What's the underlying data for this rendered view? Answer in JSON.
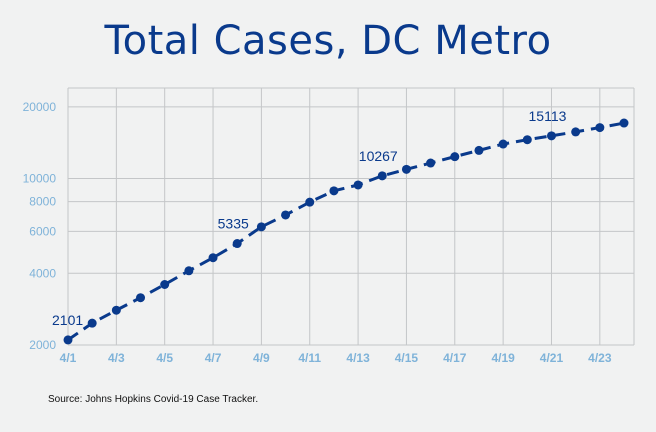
{
  "chart_data": {
    "type": "line",
    "title": "Total Cases, DC Metro",
    "xlabel": "",
    "ylabel": "",
    "yscale": "log",
    "ylim": [
      2000,
      24000
    ],
    "grid": true,
    "x": [
      "4/1",
      "4/2",
      "4/3",
      "4/4",
      "4/5",
      "4/6",
      "4/7",
      "4/8",
      "4/9",
      "4/10",
      "4/11",
      "4/12",
      "4/13",
      "4/14",
      "4/15",
      "4/16",
      "4/17",
      "4/18",
      "4/19",
      "4/20",
      "4/21",
      "4/22",
      "4/23",
      "4/24"
    ],
    "x_tick_labels": [
      "4/1",
      "4/3",
      "4/5",
      "4/7",
      "4/9",
      "4/11",
      "4/13",
      "4/15",
      "4/17",
      "4/19",
      "4/21",
      "4/23"
    ],
    "y_tick_labels": [
      2000,
      4000,
      6000,
      8000,
      10000,
      20000
    ],
    "series": [
      {
        "color": "#0a3a8c",
        "line_style": "dashed",
        "values": [
          2101,
          2470,
          2800,
          3160,
          3590,
          4100,
          4650,
          5335,
          6270,
          7030,
          7960,
          8880,
          9400,
          10267,
          10930,
          11620,
          12360,
          13130,
          13960,
          14560,
          15113,
          15700,
          16370,
          17100
        ]
      }
    ],
    "data_labels": [
      {
        "x": "4/1",
        "text": "2101"
      },
      {
        "x": "4/8",
        "text": "5335"
      },
      {
        "x": "4/14",
        "text": "10267"
      },
      {
        "x": "4/21",
        "text": "15113"
      }
    ]
  },
  "source": "Source: Johns Hopkins Covid-19 Case Tracker."
}
